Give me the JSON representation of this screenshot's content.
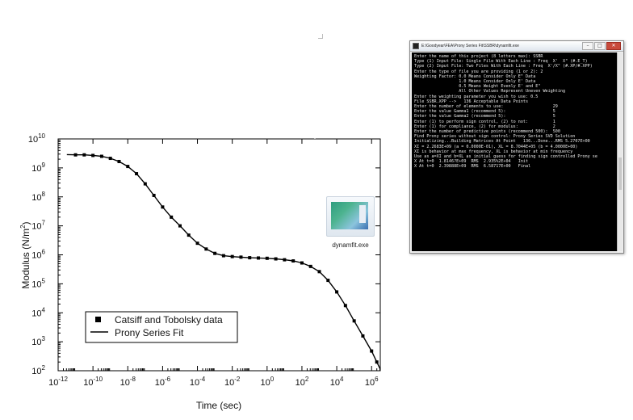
{
  "chart_data": {
    "type": "line",
    "xlabel": "Time (sec)",
    "ylabel": "Modulus (N/m",
    "ylabel_superscript": "2",
    "ylabel_suffix": ")",
    "x_scale": "log",
    "y_scale": "log",
    "xlim_exponents": [
      -12,
      6.5
    ],
    "ylim_exponents": [
      2,
      10
    ],
    "x_ticks": [
      {
        "base": "10",
        "exp": "-12",
        "e": -12
      },
      {
        "base": "10",
        "exp": "-10",
        "e": -10
      },
      {
        "base": "10",
        "exp": "-8",
        "e": -8
      },
      {
        "base": "10",
        "exp": "-6",
        "e": -6
      },
      {
        "base": "10",
        "exp": "-4",
        "e": -4
      },
      {
        "base": "10",
        "exp": "-2",
        "e": -2
      },
      {
        "base": "10",
        "exp": "0",
        "e": 0
      },
      {
        "base": "10",
        "exp": "2",
        "e": 2
      },
      {
        "base": "10",
        "exp": "4",
        "e": 4
      },
      {
        "base": "10",
        "exp": "6",
        "e": 6
      }
    ],
    "y_ticks": [
      {
        "base": "10",
        "exp": "2",
        "e": 2
      },
      {
        "base": "10",
        "exp": "3",
        "e": 3
      },
      {
        "base": "10",
        "exp": "4",
        "e": 4
      },
      {
        "base": "10",
        "exp": "5",
        "e": 5
      },
      {
        "base": "10",
        "exp": "6",
        "e": 6
      },
      {
        "base": "10",
        "exp": "7",
        "e": 7
      },
      {
        "base": "10",
        "exp": "8",
        "e": 8
      },
      {
        "base": "10",
        "exp": "9",
        "e": 9
      },
      {
        "base": "10",
        "exp": "10",
        "e": 10
      }
    ],
    "legend": {
      "placement": "bottom-left",
      "entries": [
        {
          "label": "Catsiff and Tobolsky data",
          "marker": "square"
        },
        {
          "label": "Prony Series Fit",
          "marker": "line"
        }
      ]
    },
    "series": [
      {
        "name": "Catsiff and Tobolsky data",
        "kind": "scatter",
        "log10_x": [
          -11,
          -10.5,
          -10,
          -9.5,
          -9,
          -8.5,
          -8,
          -7.5,
          -7,
          -6.5,
          -6,
          -5.5,
          -5,
          -4.5,
          -4,
          -3.5,
          -3,
          -2.5,
          -2,
          -1.5,
          -1,
          -0.5,
          0,
          0.5,
          1,
          1.5,
          2,
          2.5,
          3,
          3.5,
          4,
          4.5,
          5,
          5.5,
          6,
          6.3
        ],
        "log10_y": [
          9.45,
          9.45,
          9.43,
          9.4,
          9.33,
          9.22,
          9.05,
          8.8,
          8.45,
          8.05,
          7.65,
          7.3,
          7.0,
          6.68,
          6.4,
          6.2,
          6.05,
          5.97,
          5.94,
          5.92,
          5.9,
          5.89,
          5.88,
          5.86,
          5.83,
          5.79,
          5.72,
          5.6,
          5.42,
          5.12,
          4.72,
          4.25,
          3.72,
          3.2,
          2.68,
          2.3
        ]
      },
      {
        "name": "Prony Series Fit",
        "kind": "line",
        "log10_x": [
          -11.5,
          -11,
          -10.5,
          -10,
          -9.5,
          -9,
          -8.5,
          -8,
          -7.5,
          -7,
          -6.5,
          -6,
          -5.5,
          -5,
          -4.5,
          -4,
          -3.5,
          -3,
          -2.5,
          -2,
          -1.5,
          -1,
          -0.5,
          0,
          0.5,
          1,
          1.5,
          2,
          2.5,
          3,
          3.5,
          4,
          4.5,
          5,
          5.5,
          6,
          6.3,
          6.5
        ],
        "log10_y": [
          9.46,
          9.45,
          9.45,
          9.43,
          9.4,
          9.33,
          9.22,
          9.05,
          8.8,
          8.45,
          8.05,
          7.65,
          7.3,
          7.0,
          6.68,
          6.4,
          6.2,
          6.05,
          5.97,
          5.94,
          5.92,
          5.9,
          5.89,
          5.88,
          5.86,
          5.83,
          5.79,
          5.72,
          5.6,
          5.42,
          5.12,
          4.72,
          4.25,
          3.72,
          3.2,
          2.68,
          2.3,
          2.05
        ]
      }
    ]
  },
  "console_window": {
    "title": "E:\\Goodyear\\FEA\\Prony Series Fit\\SSBR\\dynamfit.exe",
    "minimize": "–",
    "maximize": "□",
    "close": "✕",
    "lines": [
      "Enter the name of this project (8 letters max): SSBR",
      "",
      "Type (1) Input File: Single File With Each Line : Freq  X'  X\" (#.E_T)",
      "Type (2) Input File: Two Files With Each Line : Freq  X'/X\" (#.XP/#.XPP)",
      "",
      "Enter the type of file you are providing (1 or 2): 2",
      "",
      "Weighting Factor: 0.0 Means Consider Only E\" Data",
      "                  1.0 Means Consider Only E' Data",
      "                  0.5 Means Weight Evenly E' and E\"",
      "                  All Other Values Represent Uneven Weighting",
      "Enter the weighting parameter you wish to use: 0.5",
      "",
      "File SSBR.XPP -->   136 Acceptable Data Points",
      "",
      "Enter the number of elements to use:                    29",
      "Enter the value Gamma1 (recommend 5):                   5",
      "Enter the value Gamma2 (recommend 5):                   5",
      "Enter (1) to perform sign control, (2) to not:          1",
      "Enter (1) for compliance, (2) for modulus:              2",
      "Enter the number of predictive points (recommend 500):  500",
      "",
      "Find Prony series without sign control: Prony Series SVD Solution",
      "Initializing...Building Matrices At Point   136...Done...RMS 5.2707E+00",
      "",
      "XI = 2.2683E+09 (a = 0.0000E-01), XL = 8.7044E+05 (b = 4.0000E+00)",
      "XI is behavior at max frequency, XL is behavior at min frequency",
      "Use as a=XI and b=XL as initial guess for finding sign controlled Prony se",
      "",
      "X At t=0  1.8146?E+09  RMS  2.935%2E+04   Init",
      "X At t=0  2.39888E+09  RMS  6.58717E+00   Final"
    ]
  },
  "desktop_icon": {
    "label": "dynamfit.exe",
    "icon": "executable-thumbnail-icon"
  },
  "colors": {
    "series": "#000000",
    "console_bg": "#000000",
    "console_text": "#e8e8e8"
  }
}
